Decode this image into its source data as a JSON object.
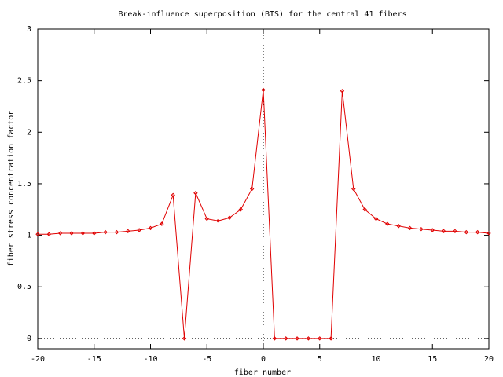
{
  "chart_data": {
    "type": "line",
    "title": "Break-influence superposition (BIS) for the central 41 fibers",
    "x_label": "fiber number",
    "y_label": "fiber stress concentration factor",
    "x": [
      -20,
      -19,
      -18,
      -17,
      -16,
      -15,
      -14,
      -13,
      -12,
      -11,
      -10,
      -9,
      -8,
      -7,
      -6,
      -5,
      -4,
      -3,
      -2,
      -1,
      0,
      1,
      2,
      3,
      4,
      5,
      6,
      7,
      8,
      9,
      10,
      11,
      12,
      13,
      14,
      15,
      16,
      17,
      18,
      19,
      20
    ],
    "series": [
      {
        "color": "#e00000",
        "values": [
          1.01,
          1.01,
          1.02,
          1.02,
          1.02,
          1.02,
          1.03,
          1.03,
          1.04,
          1.05,
          1.07,
          1.11,
          1.39,
          0,
          1.41,
          1.16,
          1.14,
          1.17,
          1.25,
          1.45,
          2.41,
          0,
          0,
          0,
          0,
          0,
          0,
          2.4,
          1.45,
          1.25,
          1.16,
          1.11,
          1.09,
          1.07,
          1.06,
          1.05,
          1.04,
          1.04,
          1.03,
          1.03,
          1.02
        ]
      }
    ],
    "xlim": [
      -20,
      20
    ],
    "ylim": [
      -0.1,
      3
    ],
    "xticks": [
      -20,
      -15,
      -10,
      -5,
      0,
      5,
      10,
      15,
      20
    ],
    "yticks": [
      0,
      0.5,
      1,
      1.5,
      2,
      2.5,
      3
    ],
    "zeroaxis": true
  }
}
